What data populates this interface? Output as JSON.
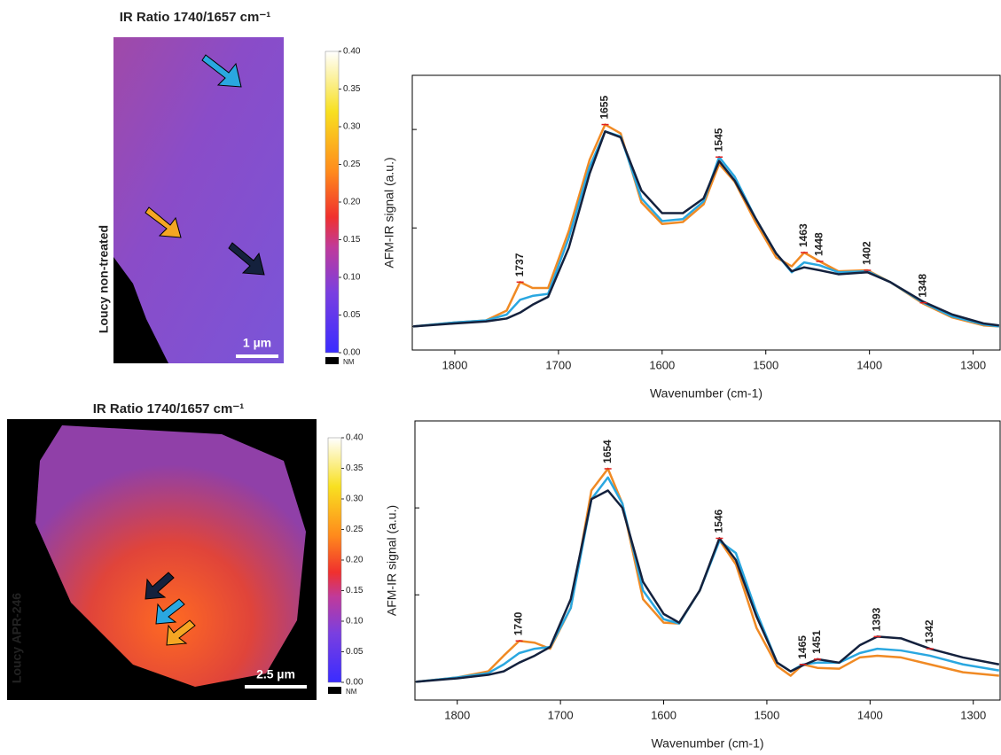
{
  "chart_data": [
    {
      "type": "map",
      "title": "IR Ratio 1740/1657 cm⁻¹",
      "sample_label": "Loucy non-treated",
      "scale_bar": "1 µm",
      "nm_label": "NM",
      "clim": [
        0,
        0.4
      ],
      "cticks": [
        {
          "value": 0,
          "label": "0.00"
        },
        {
          "value": 0.05,
          "label": "0.05"
        },
        {
          "value": 0.1,
          "label": "0.10"
        },
        {
          "value": 0.15,
          "label": "0.15"
        },
        {
          "value": 0.2,
          "label": "0.20"
        },
        {
          "value": 0.25,
          "label": "0.25"
        },
        {
          "value": 0.3,
          "label": "0.30"
        },
        {
          "value": 0.35,
          "label": "0.35"
        },
        {
          "value": 0.4,
          "label": "0.40"
        }
      ]
    },
    {
      "type": "line",
      "xlabel": "Wavenumber (cm-1)",
      "ylabel": "AFM-IR signal (a.u.)",
      "xlim": [
        1841,
        1274
      ],
      "xticks": [
        1800,
        1700,
        1600,
        1500,
        1400,
        1300
      ],
      "ylim": [
        -0.24,
        2.55
      ],
      "yticks": [
        0,
        1,
        2
      ],
      "x": [
        1840,
        1800,
        1770,
        1750,
        1737,
        1725,
        1710,
        1690,
        1670,
        1655,
        1640,
        1620,
        1600,
        1580,
        1560,
        1545,
        1530,
        1510,
        1490,
        1475,
        1463,
        1448,
        1430,
        1402,
        1380,
        1348,
        1320,
        1290,
        1275
      ],
      "series": [
        {
          "color": "#f08a24",
          "values": [
            0,
            0.04,
            0.06,
            0.16,
            0.45,
            0.39,
            0.39,
            0.97,
            1.69,
            2.05,
            1.96,
            1.26,
            1.04,
            1.06,
            1.24,
            1.65,
            1.47,
            1.06,
            0.7,
            0.61,
            0.75,
            0.66,
            0.56,
            0.57,
            0.45,
            0.23,
            0.09,
            0.01,
            0
          ]
        },
        {
          "color": "#2aa7e0",
          "values": [
            0,
            0.04,
            0.06,
            0.12,
            0.27,
            0.31,
            0.33,
            0.9,
            1.62,
            1.98,
            1.93,
            1.3,
            1.07,
            1.09,
            1.27,
            1.72,
            1.52,
            1.1,
            0.74,
            0.55,
            0.65,
            0.62,
            0.55,
            0.56,
            0.45,
            0.24,
            0.1,
            0.02,
            0
          ]
        },
        {
          "color": "#14213d",
          "values": [
            0,
            0.03,
            0.05,
            0.08,
            0.14,
            0.22,
            0.3,
            0.8,
            1.55,
            1.98,
            1.92,
            1.38,
            1.15,
            1.15,
            1.3,
            1.68,
            1.48,
            1.1,
            0.74,
            0.56,
            0.6,
            0.57,
            0.53,
            0.55,
            0.45,
            0.25,
            0.12,
            0.03,
            0.01
          ]
        }
      ],
      "peaks": [
        {
          "x": 1737,
          "y": 0.45
        },
        {
          "x": 1655,
          "y": 2.05
        },
        {
          "x": 1545,
          "y": 1.72
        },
        {
          "x": 1463,
          "y": 0.75
        },
        {
          "x": 1448,
          "y": 0.66
        },
        {
          "x": 1402,
          "y": 0.57
        },
        {
          "x": 1348,
          "y": 0.24
        }
      ]
    },
    {
      "type": "map",
      "title": "IR Ratio 1740/1657 cm⁻¹",
      "sample_label": "Loucy APR-246",
      "scale_bar": "2.5 µm",
      "nm_label": "NM",
      "clim": [
        0,
        0.4
      ],
      "cticks": [
        {
          "value": 0,
          "label": "0.00"
        },
        {
          "value": 0.05,
          "label": "0.05"
        },
        {
          "value": 0.1,
          "label": "0.10"
        },
        {
          "value": 0.15,
          "label": "0.15"
        },
        {
          "value": 0.2,
          "label": "0.20"
        },
        {
          "value": 0.25,
          "label": "0.25"
        },
        {
          "value": 0.3,
          "label": "0.30"
        },
        {
          "value": 0.35,
          "label": "0.35"
        },
        {
          "value": 0.4,
          "label": "0.40"
        }
      ]
    },
    {
      "type": "line",
      "xlabel": "Wavenumber (cm-1)",
      "ylabel": "AFM-IR signal (a.u.)",
      "xlim": [
        1841,
        1274
      ],
      "xticks": [
        1800,
        1700,
        1600,
        1500,
        1400,
        1300
      ],
      "ylim": [
        -0.21,
        3.0
      ],
      "yticks": [
        0,
        1,
        2
      ],
      "x": [
        1840,
        1800,
        1770,
        1755,
        1740,
        1725,
        1710,
        1690,
        1670,
        1654,
        1640,
        1620,
        1600,
        1585,
        1565,
        1546,
        1530,
        1510,
        1490,
        1477,
        1465,
        1451,
        1430,
        1410,
        1393,
        1370,
        1342,
        1310,
        1275
      ],
      "series": [
        {
          "color": "#f08a24",
          "values": [
            0,
            0.05,
            0.12,
            0.3,
            0.47,
            0.45,
            0.38,
            0.85,
            2.2,
            2.45,
            2.05,
            0.95,
            0.68,
            0.67,
            1.05,
            1.63,
            1.35,
            0.62,
            0.18,
            0.07,
            0.2,
            0.16,
            0.15,
            0.28,
            0.3,
            0.28,
            0.2,
            0.11,
            0.07
          ]
        },
        {
          "color": "#2aa7e0",
          "values": [
            0,
            0.05,
            0.1,
            0.2,
            0.33,
            0.38,
            0.4,
            0.85,
            2.1,
            2.35,
            2.05,
            1.05,
            0.72,
            0.67,
            1.05,
            1.62,
            1.48,
            0.8,
            0.22,
            0.12,
            0.2,
            0.22,
            0.22,
            0.33,
            0.38,
            0.36,
            0.3,
            0.2,
            0.13
          ]
        },
        {
          "color": "#14213d",
          "values": [
            0,
            0.04,
            0.08,
            0.12,
            0.22,
            0.3,
            0.4,
            0.95,
            2.1,
            2.2,
            2.0,
            1.15,
            0.78,
            0.68,
            1.05,
            1.65,
            1.4,
            0.75,
            0.22,
            0.12,
            0.19,
            0.26,
            0.22,
            0.42,
            0.52,
            0.5,
            0.38,
            0.28,
            0.2
          ]
        }
      ],
      "peaks": [
        {
          "x": 1740,
          "y": 0.47
        },
        {
          "x": 1654,
          "y": 2.45
        },
        {
          "x": 1546,
          "y": 1.65
        },
        {
          "x": 1465,
          "y": 0.2
        },
        {
          "x": 1451,
          "y": 0.26
        },
        {
          "x": 1393,
          "y": 0.52
        },
        {
          "x": 1342,
          "y": 0.38
        }
      ]
    }
  ]
}
